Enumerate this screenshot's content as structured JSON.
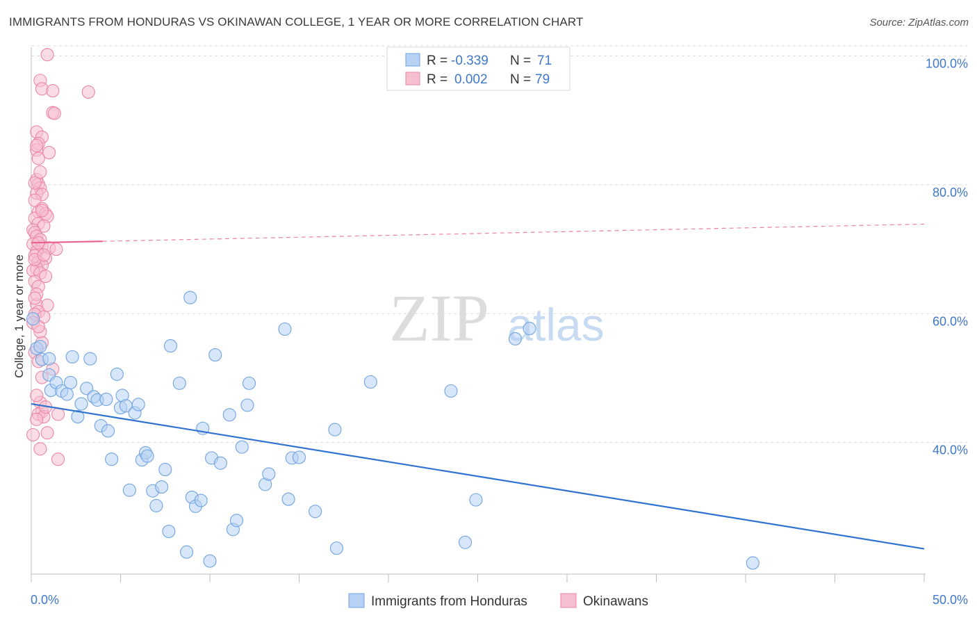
{
  "header": {
    "title": "IMMIGRANTS FROM HONDURAS VS OKINAWAN COLLEGE, 1 YEAR OR MORE CORRELATION CHART",
    "source": "Source: ZipAtlas.com"
  },
  "watermark": {
    "zip": "ZIP",
    "atlas": "atlas"
  },
  "colors": {
    "blue": "#6fa3e3",
    "blue_fill": "#b7d1f3",
    "blue_line": "#2f72d0",
    "pink": "#ec86a6",
    "pink_fill": "#f6bfd0",
    "pink_line": "#e8628c",
    "tick_label": "#3f78c9",
    "grid": "#d9d9d9"
  },
  "chart_data": {
    "type": "scatter",
    "title": "IMMIGRANTS FROM HONDURAS VS OKINAWAN COLLEGE, 1 YEAR OR MORE CORRELATION CHART",
    "xlabel": "",
    "ylabel": "College, 1 year or more",
    "xlim": [
      0,
      50
    ],
    "ylim": [
      20,
      102
    ],
    "x_tick_labels": [
      "0.0%",
      "50.0%"
    ],
    "y_ticks": [
      {
        "value": 100,
        "label": "100.0%"
      },
      {
        "value": 80,
        "label": "80.0%"
      },
      {
        "value": 60,
        "label": "60.0%"
      },
      {
        "value": 40,
        "label": "40.0%"
      }
    ],
    "legend_box": [
      {
        "r_label": "R =",
        "r_value": "-0.339",
        "n_label": "N =",
        "n_value": "71",
        "series": "blue"
      },
      {
        "r_label": "R =",
        "r_value": "0.002",
        "n_label": "N =",
        "n_value": "79",
        "series": "pink"
      }
    ],
    "legend": [
      "Immigrants from Honduras",
      "Okinawans"
    ],
    "series": [
      {
        "name": "Immigrants from Honduras",
        "color": "blue",
        "trend": {
          "x0": 0,
          "y0": 46.0,
          "x1": 50,
          "y1": 23.5,
          "dashed_from": null
        },
        "points": [
          [
            0.1,
            59.2
          ],
          [
            0.3,
            54.6
          ],
          [
            0.6,
            52.9
          ],
          [
            1.0,
            50.5
          ],
          [
            1.1,
            48.1
          ],
          [
            1.4,
            49.3
          ],
          [
            1.7,
            48.0
          ],
          [
            2.0,
            47.5
          ],
          [
            2.2,
            49.3
          ],
          [
            2.3,
            53.3
          ],
          [
            2.6,
            44.0
          ],
          [
            2.8,
            46.0
          ],
          [
            3.1,
            48.4
          ],
          [
            3.3,
            53.0
          ],
          [
            3.5,
            47.1
          ],
          [
            3.7,
            46.6
          ],
          [
            3.9,
            42.6
          ],
          [
            4.2,
            46.7
          ],
          [
            4.3,
            41.8
          ],
          [
            4.5,
            37.4
          ],
          [
            4.8,
            50.6
          ],
          [
            5.0,
            45.4
          ],
          [
            5.1,
            47.3
          ],
          [
            5.3,
            45.7
          ],
          [
            5.5,
            32.6
          ],
          [
            5.8,
            44.6
          ],
          [
            6.0,
            45.9
          ],
          [
            6.2,
            37.3
          ],
          [
            6.4,
            38.4
          ],
          [
            6.5,
            37.9
          ],
          [
            6.8,
            32.5
          ],
          [
            7.0,
            30.2
          ],
          [
            7.3,
            33.1
          ],
          [
            7.5,
            35.8
          ],
          [
            7.7,
            26.2
          ],
          [
            7.8,
            55.0
          ],
          [
            8.3,
            49.2
          ],
          [
            8.7,
            23.0
          ],
          [
            8.9,
            62.5
          ],
          [
            9.0,
            31.5
          ],
          [
            9.2,
            30.1
          ],
          [
            9.5,
            31.0
          ],
          [
            9.6,
            42.2
          ],
          [
            10.0,
            21.6
          ],
          [
            10.1,
            37.6
          ],
          [
            10.3,
            53.6
          ],
          [
            10.6,
            36.8
          ],
          [
            11.1,
            44.3
          ],
          [
            11.3,
            26.5
          ],
          [
            11.5,
            27.9
          ],
          [
            11.8,
            39.3
          ],
          [
            12.1,
            45.8
          ],
          [
            12.2,
            49.2
          ],
          [
            13.1,
            33.5
          ],
          [
            13.3,
            35.1
          ],
          [
            14.2,
            57.6
          ],
          [
            14.4,
            31.2
          ],
          [
            14.6,
            37.6
          ],
          [
            15.0,
            37.7
          ],
          [
            15.9,
            29.3
          ],
          [
            17.0,
            42.0
          ],
          [
            17.1,
            23.6
          ],
          [
            19.0,
            49.4
          ],
          [
            23.5,
            48.0
          ],
          [
            24.3,
            24.5
          ],
          [
            24.9,
            31.1
          ],
          [
            27.1,
            56.1
          ],
          [
            27.9,
            57.7
          ],
          [
            40.4,
            21.3
          ],
          [
            1.0,
            53.0
          ],
          [
            0.5,
            54.9
          ]
        ]
      },
      {
        "name": "Okinawans",
        "color": "pink",
        "trend": {
          "x0": 0,
          "y0": 71.0,
          "x1": 50,
          "y1": 73.9,
          "dashed_from": 4.0
        },
        "points": [
          [
            0.9,
            100.2
          ],
          [
            0.5,
            96.2
          ],
          [
            0.6,
            94.9
          ],
          [
            1.2,
            94.6
          ],
          [
            3.2,
            94.4
          ],
          [
            1.2,
            91.2
          ],
          [
            1.3,
            91.1
          ],
          [
            0.3,
            88.2
          ],
          [
            0.6,
            87.4
          ],
          [
            0.4,
            86.4
          ],
          [
            0.3,
            85.4
          ],
          [
            1.0,
            85.0
          ],
          [
            0.4,
            84.1
          ],
          [
            0.3,
            80.8
          ],
          [
            0.4,
            80.1
          ],
          [
            0.5,
            79.5
          ],
          [
            0.3,
            78.7
          ],
          [
            0.6,
            78.5
          ],
          [
            0.2,
            77.6
          ],
          [
            0.6,
            76.3
          ],
          [
            0.4,
            75.8
          ],
          [
            0.8,
            75.5
          ],
          [
            0.9,
            75.1
          ],
          [
            0.2,
            74.8
          ],
          [
            0.4,
            74.0
          ],
          [
            0.7,
            73.6
          ],
          [
            0.1,
            73.0
          ],
          [
            0.2,
            72.6
          ],
          [
            0.3,
            72.0
          ],
          [
            0.5,
            71.5
          ],
          [
            0.1,
            70.8
          ],
          [
            0.6,
            70.4
          ],
          [
            1.0,
            70.2
          ],
          [
            1.4,
            70.0
          ],
          [
            0.3,
            69.6
          ],
          [
            0.2,
            69.0
          ],
          [
            0.8,
            68.6
          ],
          [
            0.4,
            68.0
          ],
          [
            0.6,
            67.5
          ],
          [
            0.3,
            67.0
          ],
          [
            0.1,
            66.7
          ],
          [
            0.5,
            66.3
          ],
          [
            0.8,
            65.8
          ],
          [
            0.2,
            65.0
          ],
          [
            0.4,
            64.2
          ],
          [
            0.3,
            61.4
          ],
          [
            0.9,
            61.3
          ],
          [
            0.4,
            60.3
          ],
          [
            0.2,
            59.9
          ],
          [
            0.7,
            59.5
          ],
          [
            0.1,
            58.6
          ],
          [
            0.6,
            55.5
          ],
          [
            1.2,
            51.4
          ],
          [
            0.5,
            46.2
          ],
          [
            0.6,
            44.8
          ],
          [
            0.4,
            44.4
          ],
          [
            0.7,
            44.0
          ],
          [
            0.3,
            43.6
          ],
          [
            1.5,
            44.4
          ],
          [
            0.9,
            41.5
          ],
          [
            1.5,
            37.4
          ],
          [
            0.2,
            80.3
          ],
          [
            0.5,
            82.0
          ],
          [
            0.3,
            86.1
          ],
          [
            0.6,
            76.0
          ],
          [
            0.4,
            71.0
          ],
          [
            0.2,
            68.4
          ],
          [
            0.7,
            69.1
          ],
          [
            0.3,
            63.0
          ],
          [
            0.5,
            57.2
          ],
          [
            0.2,
            54.0
          ],
          [
            0.4,
            52.6
          ],
          [
            0.6,
            50.1
          ],
          [
            0.3,
            47.3
          ],
          [
            0.8,
            45.5
          ],
          [
            0.1,
            41.2
          ],
          [
            0.5,
            39.0
          ],
          [
            0.2,
            62.4
          ],
          [
            0.4,
            58.0
          ]
        ]
      }
    ]
  }
}
